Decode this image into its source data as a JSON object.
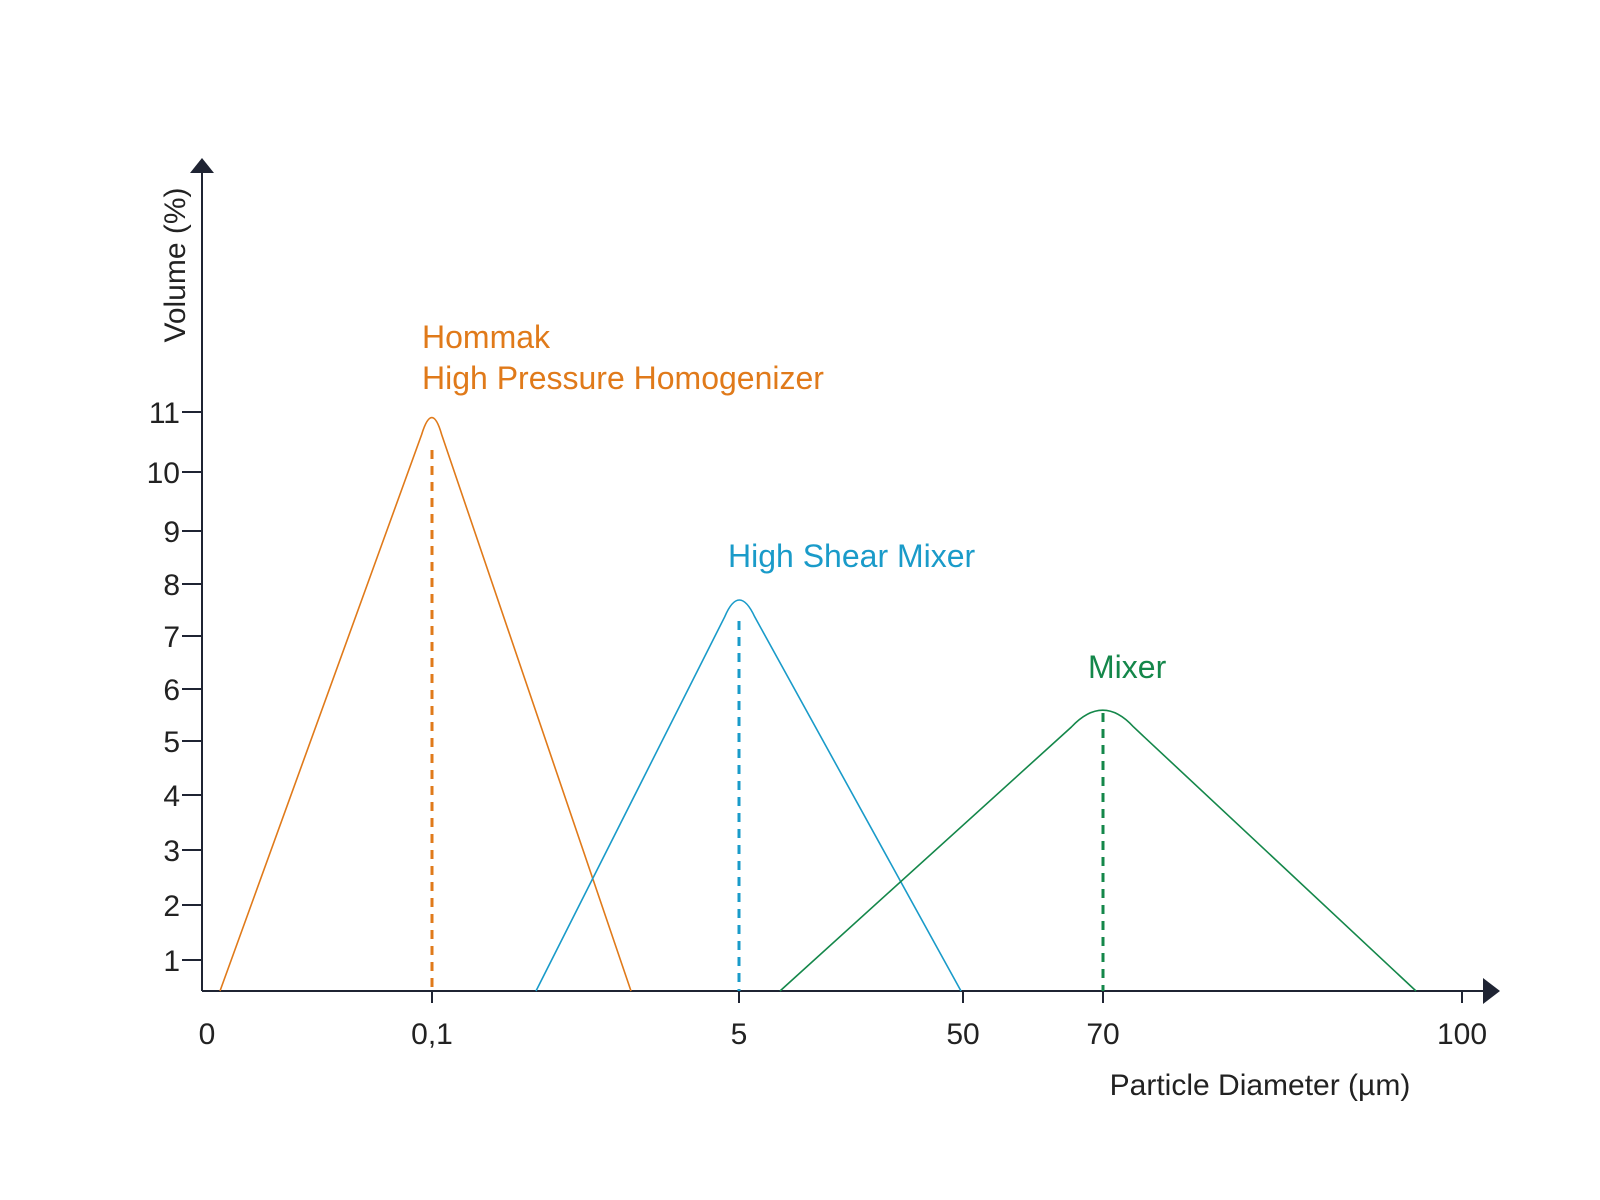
{
  "chart_data": {
    "type": "line",
    "xlabel": "Particle Diameter (µm)",
    "ylabel": "Volume (%)",
    "x_ticks": [
      "0",
      "0,1",
      "5",
      "50",
      "70",
      "100"
    ],
    "y_ticks": [
      "1",
      "2",
      "3",
      "4",
      "5",
      "6",
      "7",
      "8",
      "9",
      "10",
      "11"
    ],
    "ylim": [
      0.4,
      11
    ],
    "grid": false,
    "series": [
      {
        "name": "Hommak\nHigh Pressure Homogenizer",
        "label_lines": [
          "Hommak",
          "High Pressure Homogenizer"
        ],
        "color": "#e07a1a",
        "peak_x": "0,1",
        "peak_volume": 11.0,
        "median_x": "0,1",
        "shape": "triangular distribution with rounded peak"
      },
      {
        "name": "High Shear Mixer",
        "label_lines": [
          "High Shear Mixer"
        ],
        "color": "#1a9bc9",
        "peak_x": "5",
        "peak_volume": 7.8,
        "median_x": "5",
        "shape": "triangular distribution with rounded peak"
      },
      {
        "name": "Mixer",
        "label_lines": [
          "Mixer"
        ],
        "color": "#14874a",
        "peak_x": "70",
        "peak_volume": 5.7,
        "median_x": "70",
        "shape": "triangular distribution with rounded peak"
      }
    ],
    "colors": {
      "axis": "#1f2433",
      "text": "#222222"
    }
  }
}
